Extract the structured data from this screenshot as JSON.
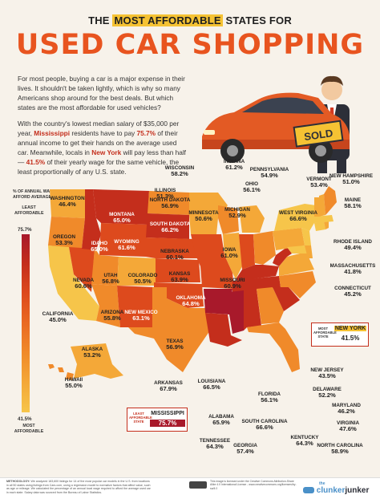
{
  "header": {
    "line1_pre": "THE ",
    "line1_highlight": "MOST AFFORDABLE",
    "line1_post": " STATES FOR",
    "title": "USED CAR SHOPPING"
  },
  "intro": {
    "p1": "For most people, buying a car is a major expense in their lives. It shouldn't be taken lightly, which is why so many Americans shop around for the best deals. But which states are the most affordable for used vehicles?",
    "p2_a": "With the country's lowest median salary of $35,000 per year, ",
    "p2_state": "Mississippi",
    "p2_b": " residents have to pay ",
    "p2_pct": "75.7%",
    "p2_c": " of their annual income to get their hands on the average used car. Meanwhile, locals in ",
    "p2_state2": "New York",
    "p2_d": " will pay less than half — ",
    "p2_pct2": "41.5%",
    "p2_e": " of their yearly wage for the same vehicle, the least proportionally of any U.S. state."
  },
  "sign_text": "SOLD",
  "legend": {
    "title": "% OF ANNUAL WAGE TO AFFORD AVERAGE USED CAR",
    "max": "75.7%",
    "least_label": "LEAST AFFORDABLE",
    "min": "41.5%",
    "most_label": "MOST AFFORDABLE",
    "colors": [
      "#a8192b",
      "#c42e1c",
      "#dd4a1d",
      "#ea6a22",
      "#f08a2a",
      "#f4a838",
      "#f6c54a"
    ]
  },
  "callouts": {
    "most": {
      "label": "MOST AFFORDABLE STATE",
      "state": "NEW YORK",
      "value": "41.5%"
    },
    "least": {
      "label": "LEAST AFFORDABLE STATE",
      "state": "MISSISSIPPI",
      "value": "75.7%"
    }
  },
  "states": [
    {
      "name": "WASHINGTON",
      "value": "46.4%"
    },
    {
      "name": "OREGON",
      "value": "53.3%"
    },
    {
      "name": "CALIFORNIA",
      "value": "45.0%"
    },
    {
      "name": "NEVADA",
      "value": "60.6%"
    },
    {
      "name": "IDAHO",
      "value": "65.0%"
    },
    {
      "name": "MONTANA",
      "value": "65.0%"
    },
    {
      "name": "WYOMING",
      "value": "61.6%"
    },
    {
      "name": "UTAH",
      "value": "56.8%"
    },
    {
      "name": "ARIZONA",
      "value": "55.8%"
    },
    {
      "name": "COLORADO",
      "value": "50.5%"
    },
    {
      "name": "NEW MEXICO",
      "value": "63.1%"
    },
    {
      "name": "NORTH DAKOTA",
      "value": "56.9%"
    },
    {
      "name": "SOUTH DAKOTA",
      "value": "66.2%"
    },
    {
      "name": "NEBRASKA",
      "value": "60.1%"
    },
    {
      "name": "KANSAS",
      "value": "63.9%"
    },
    {
      "name": "OKLAHOMA",
      "value": "64.8%"
    },
    {
      "name": "TEXAS",
      "value": "56.9%"
    },
    {
      "name": "MINNESOTA",
      "value": "50.6%"
    },
    {
      "name": "IOWA",
      "value": "61.0%"
    },
    {
      "name": "MISSOURI",
      "value": "60.9%"
    },
    {
      "name": "ARKANSAS",
      "value": "67.9%"
    },
    {
      "name": "LOUISIANA",
      "value": "66.5%"
    },
    {
      "name": "ALASKA",
      "value": "53.2%"
    },
    {
      "name": "HAWAII",
      "value": "55.0%"
    },
    {
      "name": "WISCONSIN",
      "value": "58.2%"
    },
    {
      "name": "ILLINOIS",
      "value": "51.3%"
    },
    {
      "name": "INDIANA",
      "value": "61.2%"
    },
    {
      "name": "MICHIGAN",
      "value": "52.9%"
    },
    {
      "name": "OHIO",
      "value": "56.1%"
    },
    {
      "name": "PENNSYLVANIA",
      "value": "54.9%"
    },
    {
      "name": "WEST VIRGINIA",
      "value": "66.6%"
    },
    {
      "name": "VERMONT",
      "value": "53.4%"
    },
    {
      "name": "NEW HAMPSHIRE",
      "value": "51.0%"
    },
    {
      "name": "MAINE",
      "value": "58.1%"
    },
    {
      "name": "RHODE ISLAND",
      "value": "49.4%"
    },
    {
      "name": "MASSACHUSETTS",
      "value": "41.8%"
    },
    {
      "name": "CONNECTICUT",
      "value": "45.2%"
    },
    {
      "name": "NEW JERSEY",
      "value": "43.5%"
    },
    {
      "name": "DELAWARE",
      "value": "52.2%"
    },
    {
      "name": "MARYLAND",
      "value": "46.2%"
    },
    {
      "name": "VIRGINIA",
      "value": "47.6%"
    },
    {
      "name": "NORTH CAROLINA",
      "value": "58.9%"
    },
    {
      "name": "SOUTH CAROLINA",
      "value": "66.6%"
    },
    {
      "name": "KENTUCKY",
      "value": "64.3%"
    },
    {
      "name": "TENNESSEE",
      "value": "64.3%"
    },
    {
      "name": "GEORGIA",
      "value": "57.4%"
    },
    {
      "name": "ALABAMA",
      "value": "65.9%"
    },
    {
      "name": "FLORIDA",
      "value": "56.1%"
    }
  ],
  "footer": {
    "methodology_label": "METHODOLOGY:",
    "methodology": "We analyzed 183,600 listings for 14 of the most popular car models in the U.S. from locations in all 50 states using listings from Cars.com, using a regression model to normalize factors that affect value, such as age or mileage. We calculated the percentage of an annual local wage required to afford the average used car in each state. Salary data was sourced from the Bureau of Labor Statistics.",
    "license": "This image is licensed under the Creative Commons Attribution-Share Alike 4.0 International License - www.creativecommons.org/licenses/by-sa/4.0",
    "brand_small": "the",
    "brand_a": "clunker",
    "brand_b": "junker"
  }
}
